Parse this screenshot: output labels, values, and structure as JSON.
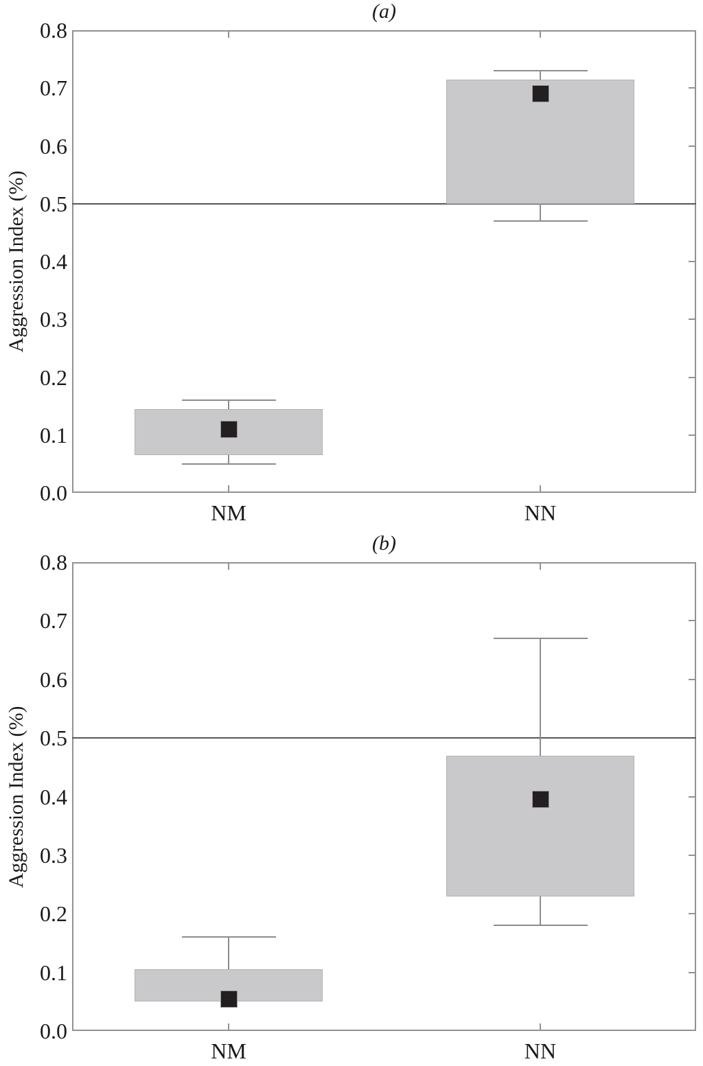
{
  "figure": {
    "background": "#ffffff"
  },
  "colors": {
    "box_fill": "#c9c9cb",
    "box_border": "#b2b2b4",
    "mean_marker": "#231f20",
    "mean_marker_border": "#9a9a9a",
    "whisker": "#8c8c8c",
    "frame": "#919193",
    "reference_line": "#55565a",
    "text": "#1a1a1a"
  },
  "chart_data": [
    {
      "type": "box",
      "title": "(a)",
      "ylabel": "Aggression Index (%)",
      "ylim": [
        0.0,
        0.8
      ],
      "ytick_step": 0.1,
      "ytick_labels": [
        "0.0",
        "0.1",
        "0.2",
        "0.3",
        "0.4",
        "0.5",
        "0.6",
        "0.7",
        "0.8"
      ],
      "reference_line_y": 0.5,
      "grid": false,
      "legend": null,
      "categories": [
        "NM",
        "NN"
      ],
      "boxes": [
        {
          "category": "NM",
          "whisker_low": 0.05,
          "box_low": 0.065,
          "mean": 0.11,
          "box_high": 0.145,
          "whisker_high": 0.16
        },
        {
          "category": "NN",
          "whisker_low": 0.47,
          "box_low": 0.5,
          "mean": 0.69,
          "box_high": 0.715,
          "whisker_high": 0.73
        }
      ]
    },
    {
      "type": "box",
      "title": "(b)",
      "ylabel": "Aggression Index (%)",
      "ylim": [
        0.0,
        0.8
      ],
      "ytick_step": 0.1,
      "ytick_labels": [
        "0.0",
        "0.1",
        "0.2",
        "0.3",
        "0.4",
        "0.5",
        "0.6",
        "0.7",
        "0.8"
      ],
      "reference_line_y": 0.5,
      "grid": false,
      "legend": null,
      "categories": [
        "NM",
        "NN"
      ],
      "boxes": [
        {
          "category": "NM",
          "whisker_low": null,
          "box_low": 0.05,
          "mean": 0.055,
          "box_high": 0.105,
          "whisker_high": 0.16
        },
        {
          "category": "NN",
          "whisker_low": 0.18,
          "box_low": 0.23,
          "mean": 0.395,
          "box_high": 0.47,
          "whisker_high": 0.67
        }
      ]
    }
  ]
}
